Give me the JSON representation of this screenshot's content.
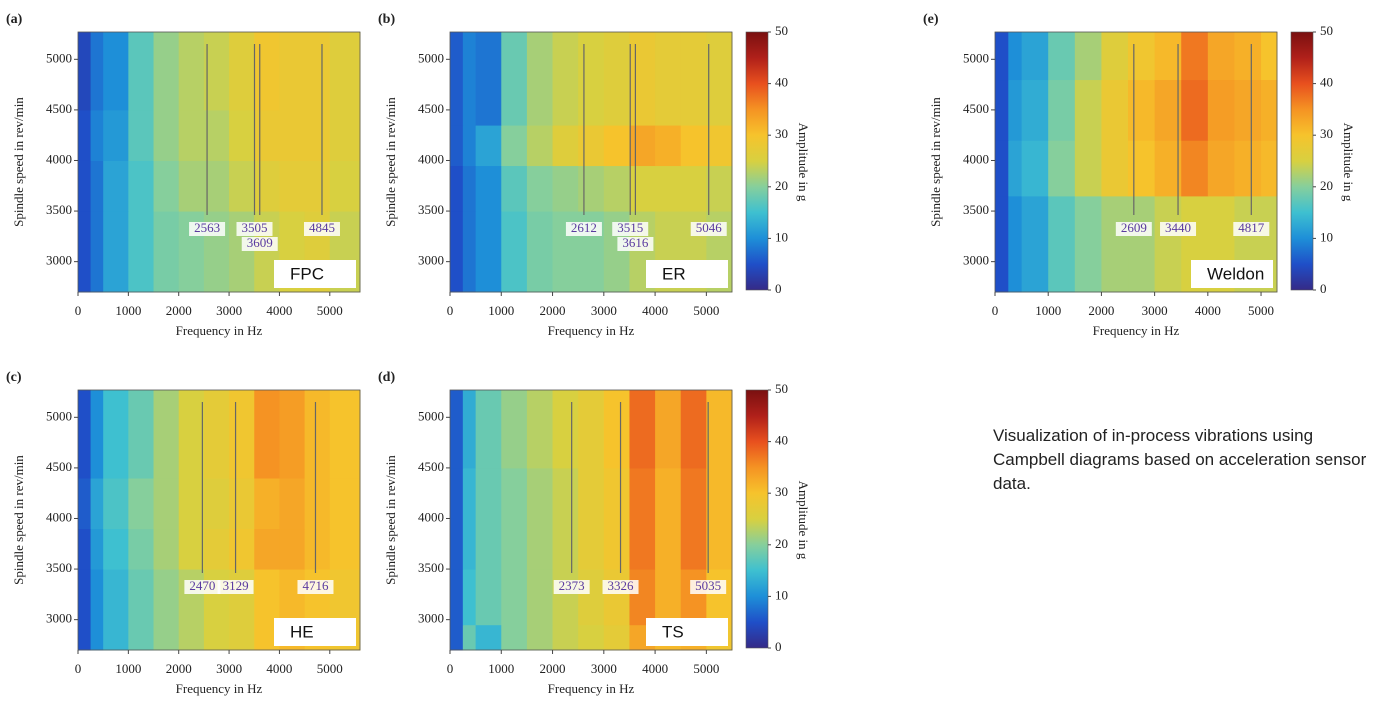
{
  "caption": "Visualization of in-process vibrations using Campbell diagrams based on acceleration sensor data.",
  "color_scale": {
    "clim": [
      0,
      50
    ],
    "colors": [
      "#352a87",
      "#1f4fc8",
      "#1e8fd8",
      "#3ec0d0",
      "#86cf9c",
      "#d8d040",
      "#f6c32c",
      "#f59323",
      "#e8501e",
      "#b0201a",
      "#7a1010"
    ]
  },
  "chart_data": [
    {
      "type": "heatmap",
      "panel_label": "(a)",
      "tool": "FPC",
      "xlabel": "Frequency in Hz",
      "ylabel": "Spindle speed in rev/min",
      "xlim": [
        0,
        5600
      ],
      "ylim": [
        2700,
        5270
      ],
      "xticks": [
        0,
        1000,
        2000,
        3000,
        4000,
        5000
      ],
      "yticks": [
        3000,
        3500,
        4000,
        4500,
        5000
      ],
      "xbins": [
        0,
        250,
        500,
        1000,
        1500,
        2000,
        2500,
        3000,
        3500,
        4000,
        4500,
        5000,
        5600
      ],
      "ybins": [
        2700,
        3500,
        4000,
        4500,
        5270
      ],
      "z": [
        [
          5,
          8,
          12,
          16,
          19,
          20,
          21,
          22,
          24,
          25,
          26,
          24
        ],
        [
          5,
          8,
          12,
          16,
          20,
          22,
          22,
          24,
          26,
          27,
          27,
          25
        ],
        [
          5,
          9,
          11,
          17,
          21,
          23,
          23,
          25,
          28,
          28,
          28,
          26
        ],
        [
          4,
          8,
          10,
          17,
          21,
          23,
          24,
          26,
          29,
          28,
          28,
          26
        ]
      ],
      "markers": [
        2563,
        3505,
        3609,
        4845
      ]
    },
    {
      "type": "heatmap",
      "panel_label": "(b)",
      "tool": "ER",
      "xlabel": "Frequency in Hz",
      "ylabel": "Spindle speed in rev/min",
      "xlim": [
        0,
        5500
      ],
      "ylim": [
        2700,
        5270
      ],
      "xticks": [
        0,
        1000,
        2000,
        3000,
        4000,
        5000
      ],
      "yticks": [
        3000,
        3500,
        4000,
        4500,
        5000
      ],
      "xbins": [
        0,
        250,
        500,
        1000,
        1500,
        2000,
        2500,
        3000,
        3500,
        4000,
        4500,
        5000,
        5500
      ],
      "ybins": [
        2700,
        3500,
        3950,
        4350,
        5270
      ],
      "z": [
        [
          5,
          8,
          10,
          16,
          19,
          20,
          20,
          21,
          23,
          24,
          24,
          23
        ],
        [
          5,
          8,
          10,
          17,
          20,
          21,
          22,
          23,
          25,
          25,
          25,
          24
        ],
        [
          6,
          9,
          12,
          20,
          23,
          26,
          28,
          30,
          33,
          32,
          30,
          29
        ],
        [
          6,
          9,
          8,
          18,
          22,
          24,
          25,
          26,
          28,
          27,
          27,
          26
        ]
      ],
      "markers": [
        2612,
        3515,
        3616,
        5046
      ],
      "colorbar_label": "Amplitude in g",
      "cticks": [
        0,
        10,
        20,
        30,
        40,
        50
      ]
    },
    {
      "type": "heatmap",
      "panel_label": "(c)",
      "tool": "HE",
      "xlabel": "Frequency in Hz",
      "ylabel": "Spindle speed in rev/min",
      "xlim": [
        0,
        5600
      ],
      "ylim": [
        2700,
        5270
      ],
      "xticks": [
        0,
        1000,
        2000,
        3000,
        4000,
        5000
      ],
      "yticks": [
        3000,
        3500,
        4000,
        4500,
        5000
      ],
      "xbins": [
        0,
        250,
        500,
        1000,
        1500,
        2000,
        2500,
        3000,
        3500,
        4000,
        4500,
        5000,
        5600
      ],
      "ybins": [
        2700,
        3500,
        3900,
        4400,
        5270
      ],
      "z": [
        [
          5,
          10,
          14,
          18,
          21,
          23,
          25,
          26,
          30,
          31,
          30,
          29
        ],
        [
          5,
          11,
          15,
          19,
          22,
          25,
          27,
          29,
          33,
          33,
          31,
          30
        ],
        [
          6,
          12,
          16,
          20,
          22,
          25,
          26,
          28,
          32,
          33,
          31,
          30
        ],
        [
          5,
          10,
          15,
          18,
          22,
          25,
          27,
          29,
          35,
          34,
          31,
          30
        ]
      ],
      "markers": [
        2470,
        3129,
        4716
      ]
    },
    {
      "type": "heatmap",
      "panel_label": "(d)",
      "tool": "TS",
      "xlabel": "Frequency in Hz",
      "ylabel": "Spindle speed in rev/min",
      "xlim": [
        0,
        5500
      ],
      "ylim": [
        2700,
        5270
      ],
      "xticks": [
        0,
        1000,
        2000,
        3000,
        4000,
        5000
      ],
      "yticks": [
        3000,
        3500,
        4000,
        4500,
        5000
      ],
      "xbins": [
        0,
        250,
        500,
        1000,
        1500,
        2000,
        2500,
        3000,
        3500,
        4000,
        4500,
        5000,
        5500
      ],
      "ybins": [
        2700,
        2950,
        3500,
        4500,
        5270
      ],
      "z": [
        [
          6,
          18,
          14,
          20,
          22,
          24,
          25,
          27,
          33,
          31,
          32,
          29
        ],
        [
          6,
          15,
          18,
          20,
          22,
          24,
          26,
          28,
          36,
          32,
          35,
          30
        ],
        [
          6,
          14,
          18,
          20,
          22,
          24,
          27,
          29,
          37,
          32,
          37,
          31
        ],
        [
          6,
          13,
          18,
          21,
          23,
          25,
          27,
          30,
          38,
          33,
          38,
          31
        ]
      ],
      "markers": [
        2373,
        3326,
        5035
      ],
      "colorbar_label": "Amplitude in g",
      "cticks": [
        0,
        10,
        20,
        30,
        40,
        50
      ]
    },
    {
      "type": "heatmap",
      "panel_label": "(e)",
      "tool": "Weldon",
      "xlabel": "Frequency in Hz",
      "ylabel": "Spindle speed in rev/min",
      "xlim": [
        0,
        5300
      ],
      "ylim": [
        2700,
        5270
      ],
      "xticks": [
        0,
        1000,
        2000,
        3000,
        4000,
        5000
      ],
      "yticks": [
        3000,
        3500,
        4000,
        4500,
        5000
      ],
      "xbins": [
        0,
        250,
        500,
        1000,
        1500,
        2000,
        2500,
        3000,
        3500,
        4000,
        4500,
        5000,
        5300
      ],
      "ybins": [
        2700,
        3650,
        4200,
        4800,
        5270
      ],
      "z": [
        [
          5,
          10,
          12,
          17,
          20,
          22,
          22,
          24,
          25,
          25,
          24,
          24
        ],
        [
          5,
          12,
          14,
          20,
          24,
          28,
          30,
          32,
          36,
          33,
          32,
          31
        ],
        [
          5,
          11,
          13,
          19,
          24,
          28,
          31,
          33,
          38,
          34,
          33,
          32
        ],
        [
          5,
          10,
          12,
          18,
          22,
          26,
          29,
          31,
          37,
          33,
          32,
          30
        ]
      ],
      "markers": [
        2609,
        3440,
        4817
      ],
      "colorbar_label": "Amplitude in g",
      "cticks": [
        0,
        10,
        20,
        30,
        40,
        50
      ]
    }
  ]
}
